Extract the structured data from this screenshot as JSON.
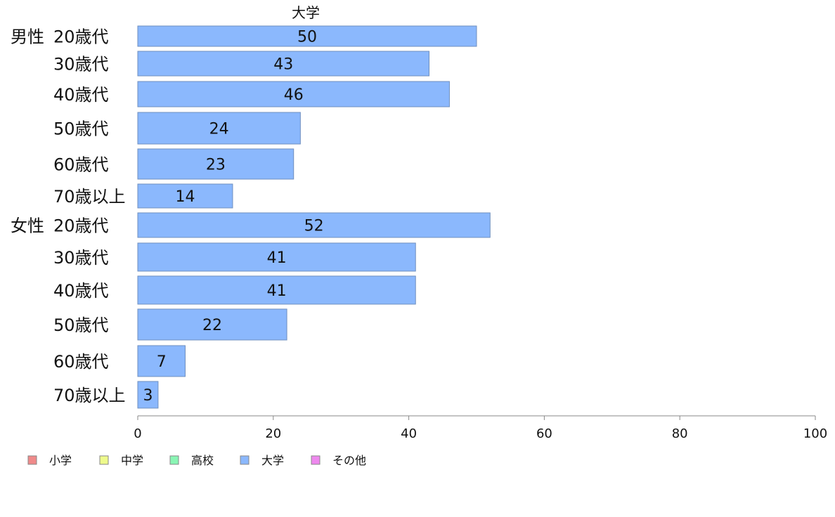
{
  "chart_data": {
    "type": "bar",
    "orientation": "horizontal",
    "title": "大学",
    "groups": [
      {
        "label": "男性",
        "categories": [
          "20歳代",
          "30歳代",
          "40歳代",
          "50歳代",
          "60歳代",
          "70歳以上"
        ],
        "values": [
          50,
          43,
          46,
          24,
          23,
          14
        ]
      },
      {
        "label": "女性",
        "categories": [
          "20歳代",
          "30歳代",
          "40歳代",
          "50歳代",
          "60歳代",
          "70歳以上"
        ],
        "values": [
          52,
          41,
          41,
          22,
          7,
          3
        ]
      }
    ],
    "series": [
      {
        "name": "大学",
        "color": "#8bb8fd"
      }
    ],
    "xlim": [
      0,
      100
    ],
    "xticks": [
      0,
      20,
      40,
      60,
      80,
      100
    ],
    "legend": {
      "position": "bottom-left",
      "entries": [
        {
          "label": "小学",
          "color": "#f08a8a"
        },
        {
          "label": "中学",
          "color": "#eefa8c"
        },
        {
          "label": "高校",
          "color": "#8af5b4"
        },
        {
          "label": "大学",
          "color": "#8bb8fd"
        },
        {
          "label": "その他",
          "color": "#ee88ee"
        }
      ]
    },
    "grid": false
  }
}
